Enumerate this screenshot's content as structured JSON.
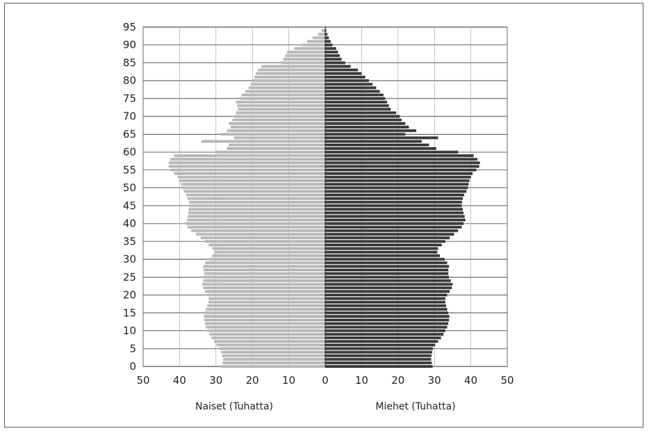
{
  "chart_data": {
    "type": "bar",
    "orientation": "horizontal",
    "subtype": "population-pyramid",
    "title": "",
    "grid": true,
    "y_axis": {
      "min": 0,
      "max": 95,
      "ticks": [
        0,
        5,
        10,
        15,
        20,
        25,
        30,
        35,
        40,
        45,
        50,
        55,
        60,
        65,
        70,
        75,
        80,
        85,
        90,
        95
      ]
    },
    "x_axis": {
      "range": [
        0,
        50
      ],
      "ticks": [
        50,
        40,
        30,
        20,
        10,
        0,
        10,
        20,
        30,
        40,
        50
      ]
    },
    "left_label": "Naiset (Tuhatta)",
    "right_label": "Miehet (Tuhatta)",
    "series": [
      {
        "name": "Naiset (Tuhatta)",
        "side": "left",
        "color": "#b8b8b8",
        "ages": [
          0,
          1,
          2,
          3,
          4,
          5,
          6,
          7,
          8,
          9,
          10,
          11,
          12,
          13,
          14,
          15,
          16,
          17,
          18,
          19,
          20,
          21,
          22,
          23,
          24,
          25,
          26,
          27,
          28,
          29,
          30,
          31,
          32,
          33,
          34,
          35,
          36,
          37,
          38,
          39,
          40,
          41,
          42,
          43,
          44,
          45,
          46,
          47,
          48,
          49,
          50,
          51,
          52,
          53,
          54,
          55,
          56,
          57,
          58,
          59,
          60,
          61,
          62,
          63,
          64,
          65,
          66,
          67,
          68,
          69,
          70,
          71,
          72,
          73,
          74,
          75,
          76,
          77,
          78,
          79,
          80,
          81,
          82,
          83,
          84,
          85,
          86,
          87,
          88,
          89,
          90,
          91,
          92,
          93,
          94,
          95
        ],
        "values": [
          28.5,
          28.2,
          28,
          28.3,
          28.6,
          29,
          29.8,
          30.5,
          31.2,
          31.8,
          32.3,
          32.8,
          33,
          33.2,
          33.3,
          33.2,
          32.8,
          32.4,
          32.1,
          32,
          32.4,
          33,
          33.5,
          33.8,
          33.5,
          33.3,
          33.2,
          33.4,
          33.5,
          33,
          32,
          31,
          30.5,
          31,
          32,
          33,
          34.2,
          35.5,
          36.8,
          37.8,
          38.2,
          38,
          37.8,
          37.6,
          37.5,
          37.3,
          37.4,
          37.8,
          38.2,
          38.8,
          39.3,
          39.6,
          40,
          40.5,
          41.5,
          42.5,
          43,
          43,
          42.5,
          41.5,
          30,
          27,
          26.5,
          34,
          25,
          28.5,
          27,
          26,
          26.5,
          25.5,
          25,
          24.5,
          24,
          24.2,
          24.5,
          23.5,
          23,
          22,
          21,
          20.5,
          20,
          19.5,
          19,
          18.5,
          17.5,
          12,
          11.5,
          11,
          10.5,
          8.5,
          6.5,
          5,
          3.5,
          2,
          1,
          0.3
        ]
      },
      {
        "name": "Miehet (Tuhatta)",
        "side": "right",
        "color": "#3a3a3a",
        "ages": [
          0,
          1,
          2,
          3,
          4,
          5,
          6,
          7,
          8,
          9,
          10,
          11,
          12,
          13,
          14,
          15,
          16,
          17,
          18,
          19,
          20,
          21,
          22,
          23,
          24,
          25,
          26,
          27,
          28,
          29,
          30,
          31,
          32,
          33,
          34,
          35,
          36,
          37,
          38,
          39,
          40,
          41,
          42,
          43,
          44,
          45,
          46,
          47,
          48,
          49,
          50,
          51,
          52,
          53,
          54,
          55,
          56,
          57,
          58,
          59,
          60,
          61,
          62,
          63,
          64,
          65,
          66,
          67,
          68,
          69,
          70,
          71,
          72,
          73,
          74,
          75,
          76,
          77,
          78,
          79,
          80,
          81,
          82,
          83,
          84,
          85,
          86,
          87,
          88,
          89,
          90,
          91,
          92,
          93,
          94,
          95
        ],
        "values": [
          29.5,
          29.3,
          29.1,
          29.2,
          29.4,
          29.6,
          30.2,
          31,
          31.8,
          32.5,
          33,
          33.5,
          33.8,
          34,
          34.1,
          33.8,
          33.5,
          33.2,
          33,
          33,
          33.5,
          34.2,
          34.8,
          35,
          34.5,
          34,
          33.8,
          33.8,
          34,
          33.5,
          32.8,
          31.5,
          30.8,
          31,
          32,
          33,
          34.2,
          35.4,
          36.5,
          37.5,
          38,
          38.5,
          38.3,
          38,
          37.8,
          37.5,
          37.6,
          37.8,
          38.2,
          38.8,
          39.2,
          39.4,
          39.6,
          40,
          40.5,
          41.5,
          42.3,
          42.5,
          41.8,
          40.8,
          36.5,
          30.5,
          28.5,
          26.5,
          31,
          22,
          25,
          23,
          22,
          21,
          20.5,
          19.5,
          18,
          17.5,
          17,
          16.5,
          16,
          15,
          14,
          13,
          12,
          11,
          10,
          9,
          7,
          5.5,
          4.5,
          4,
          3.5,
          3,
          2,
          1.5,
          1,
          0.6,
          0.3,
          0.1
        ]
      }
    ]
  }
}
